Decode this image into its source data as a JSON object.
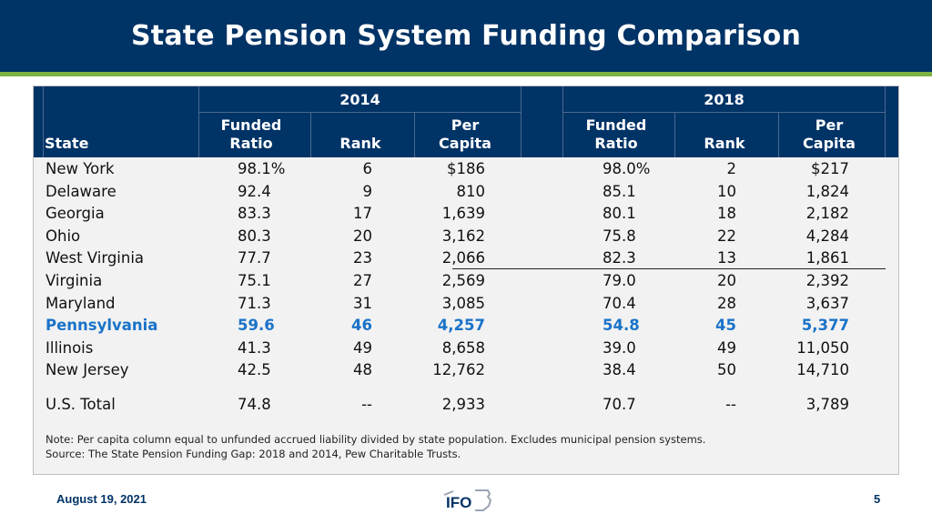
{
  "title": "State Pension System Funding Comparison",
  "header": {
    "year_a": "2014",
    "year_b": "2018",
    "state": "State",
    "funded_1": "Funded",
    "funded_2": "Ratio",
    "rank": "Rank",
    "per_1": "Per",
    "per_2": "Capita"
  },
  "rows": [
    {
      "state": "New York",
      "f14": "98.1%",
      "r14": "6",
      "p14": "$186",
      "f18": "98.0%",
      "r18": "2",
      "p18": "$217"
    },
    {
      "state": "Delaware",
      "f14": "92.4",
      "r14": "9",
      "p14": "810",
      "f18": "85.1",
      "r18": "10",
      "p18": "1,824"
    },
    {
      "state": "Georgia",
      "f14": "83.3",
      "r14": "17",
      "p14": "1,639",
      "f18": "80.1",
      "r18": "18",
      "p18": "2,182"
    },
    {
      "state": "Ohio",
      "f14": "80.3",
      "r14": "20",
      "p14": "3,162",
      "f18": "75.8",
      "r18": "22",
      "p18": "4,284"
    },
    {
      "state": "West Virginia",
      "f14": "77.7",
      "r14": "23",
      "p14": "2,066",
      "f18": "82.3",
      "r18": "13",
      "p18": "1,861"
    },
    {
      "state": "Virginia",
      "f14": "75.1",
      "r14": "27",
      "p14": "2,569",
      "f18": "79.0",
      "r18": "20",
      "p18": "2,392"
    },
    {
      "state": "Maryland",
      "f14": "71.3",
      "r14": "31",
      "p14": "3,085",
      "f18": "70.4",
      "r18": "28",
      "p18": "3,637"
    },
    {
      "state": "Pennsylvania",
      "f14": "59.6",
      "r14": "46",
      "p14": "4,257",
      "f18": "54.8",
      "r18": "45",
      "p18": "5,377"
    },
    {
      "state": "Illinois",
      "f14": "41.3",
      "r14": "49",
      "p14": "8,658",
      "f18": "39.0",
      "r18": "49",
      "p18": "11,050"
    },
    {
      "state": "New Jersey",
      "f14": "42.5",
      "r14": "48",
      "p14": "12,762",
      "f18": "38.4",
      "r18": "50",
      "p18": "14,710"
    }
  ],
  "total": {
    "state": "U.S. Total",
    "f14": "74.8",
    "r14": "--",
    "p14": "2,933",
    "f18": "70.7",
    "r18": "--",
    "p18": "3,789"
  },
  "notes": {
    "line1": "Note: Per capita column equal to unfunded accrued liability divided by state population. Excludes municipal pension systems.",
    "line2": "Source: The State Pension Funding Gap: 2018 and 2014, Pew Charitable Trusts."
  },
  "footer": {
    "date": "August 19, 2021",
    "logo_text": "IFO",
    "page": "5"
  },
  "colors": {
    "header_bg": "#003366",
    "accent_green": "#7cb342",
    "highlight_blue": "#1a73c8"
  }
}
